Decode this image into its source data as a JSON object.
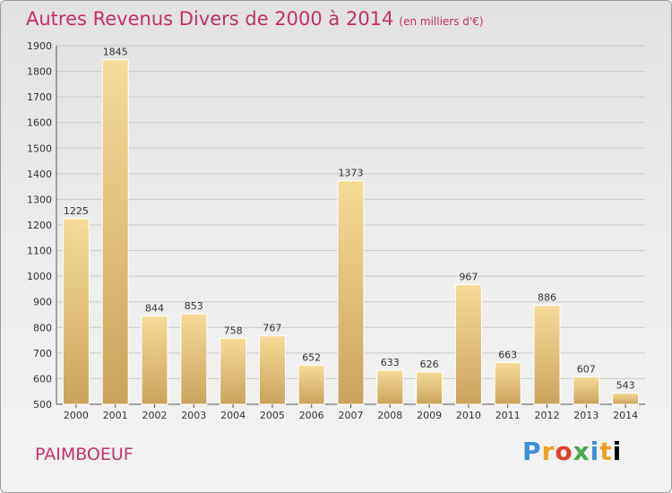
{
  "chart_data": {
    "type": "bar",
    "title": "Autres Revenus Divers de 2000 à 2014",
    "unit_note": "(en milliers d'€)",
    "categories": [
      "2000",
      "2001",
      "2002",
      "2003",
      "2004",
      "2005",
      "2006",
      "2007",
      "2008",
      "2009",
      "2010",
      "2011",
      "2012",
      "2013",
      "2014"
    ],
    "values": [
      1225,
      1845,
      844,
      853,
      758,
      767,
      652,
      1373,
      633,
      626,
      967,
      663,
      886,
      607,
      543
    ],
    "ylim": [
      500,
      1900
    ],
    "yticks": [
      500,
      600,
      700,
      800,
      900,
      1000,
      1100,
      1200,
      1300,
      1400,
      1500,
      1600,
      1700,
      1800,
      1900
    ],
    "grid": true,
    "bar_color": "#e8c878"
  },
  "footer": {
    "commune": "PAIMBOEUF",
    "logo_letters": [
      "P",
      "r",
      "o",
      "x",
      "i",
      "t",
      "i"
    ]
  }
}
